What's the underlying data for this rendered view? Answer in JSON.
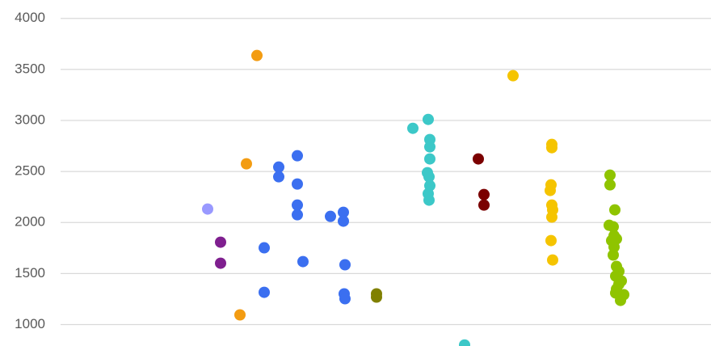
{
  "chart_data": {
    "type": "scatter",
    "xlim": [
      0,
      880
    ],
    "ylim": [
      790,
      4180
    ],
    "yticks": [
      1000,
      1500,
      2000,
      2500,
      3000,
      3500,
      4000
    ],
    "grid": true,
    "series": [
      {
        "color": "#9999ff",
        "x": [
          257
        ],
        "values": [
          2132
        ]
      },
      {
        "color": "#7f1f8f",
        "x": [
          273,
          273
        ],
        "values": [
          1807,
          1601
        ]
      },
      {
        "color": "#f39c12",
        "x": [
          318,
          305,
          297
        ],
        "values": [
          3636,
          2575,
          1095
        ]
      },
      {
        "color": "#3b6ff0",
        "x": [
          345,
          345,
          368,
          368,
          368,
          368,
          327,
          327,
          375,
          409,
          425,
          425,
          427,
          426,
          427
        ],
        "values": [
          2543,
          2448,
          2654,
          2377,
          2171,
          2076,
          1752,
          1316,
          1617,
          2060,
          2100,
          2013,
          1586,
          1301,
          1253
        ]
      },
      {
        "color": "#808000",
        "x": [
          466,
          466
        ],
        "values": [
          1301,
          1269
        ]
      },
      {
        "color": "#3cc8c8",
        "x": [
          511,
          530,
          532,
          532,
          532,
          529,
          531,
          532,
          530,
          531,
          575
        ],
        "values": [
          2923,
          3010,
          2813,
          2741,
          2623,
          2488,
          2448,
          2361,
          2282,
          2219,
          800
        ]
      },
      {
        "color": "#7b0000",
        "x": [
          592,
          599,
          599
        ],
        "values": [
          2623,
          2274,
          2171
        ]
      },
      {
        "color": "#f5c400",
        "x": [
          635,
          683,
          683,
          682,
          681,
          683,
          684,
          683,
          682,
          684
        ],
        "values": [
          3438,
          2765,
          2733,
          2369,
          2314,
          2171,
          2124,
          2053,
          1823,
          1633
        ]
      },
      {
        "color": "#8fc400",
        "x": [
          755,
          755,
          761,
          754,
          759,
          760,
          763,
          757,
          760,
          759,
          763,
          766,
          762,
          769,
          766,
          763,
          762,
          772,
          768
        ],
        "values": [
          2464,
          2369,
          2124,
          1973,
          1958,
          1871,
          1839,
          1823,
          1760,
          1681,
          1570,
          1522,
          1475,
          1428,
          1396,
          1348,
          1309,
          1293,
          1237
        ]
      }
    ]
  }
}
